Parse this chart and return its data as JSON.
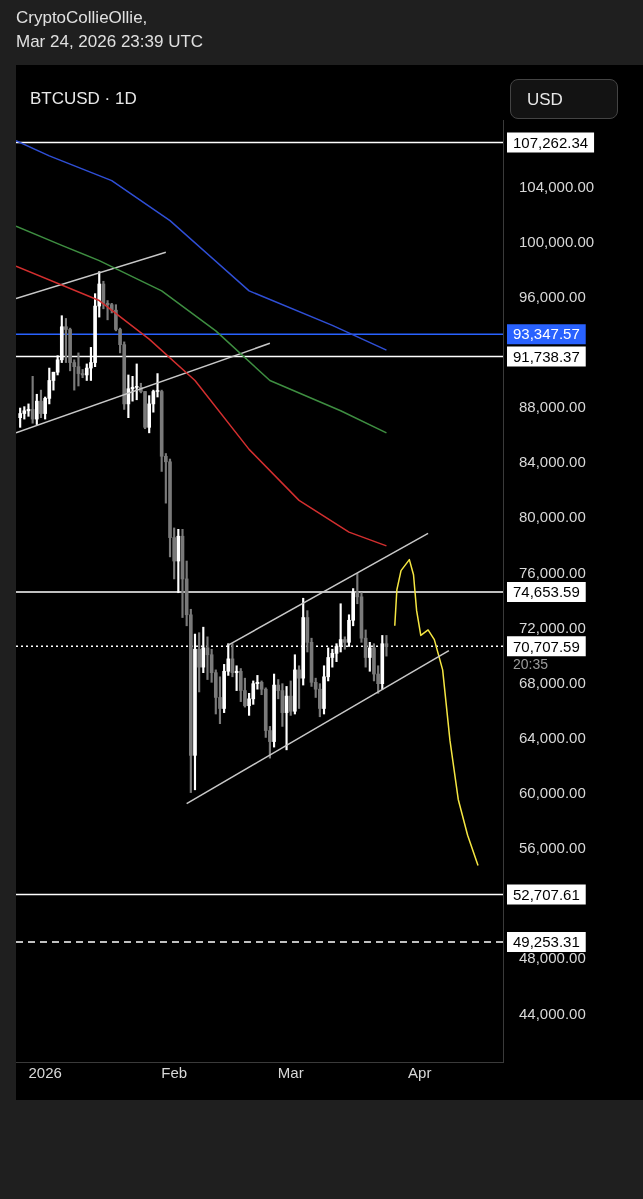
{
  "chart_data": {
    "type": "candlestick",
    "title": "CryptoCollieOllie,",
    "subtitle": "Mar 24, 2026 23:39 UTC",
    "ylabel": "USD",
    "annotations": [
      "BTCUSD · 1D",
      "20:35"
    ],
    "xlim": [
      "2025-12-25",
      "2026-04-21"
    ],
    "xticks": [
      {
        "value": "2026-01-01",
        "label": "2026"
      },
      {
        "value": "2026-02-01",
        "label": "Feb"
      },
      {
        "value": "2026-03-01",
        "label": "Mar"
      },
      {
        "value": "2026-04-01",
        "label": "Apr"
      }
    ],
    "ylim": [
      40550,
      108900
    ],
    "yticks": [
      {
        "value": 44000,
        "label": "44,000.00"
      },
      {
        "value": 48000,
        "label": "48,000.00"
      },
      {
        "value": 56000,
        "label": "56,000.00"
      },
      {
        "value": 60000,
        "label": "60,000.00"
      },
      {
        "value": 64000,
        "label": "64,000.00"
      },
      {
        "value": 68000,
        "label": "68,000.00"
      },
      {
        "value": 72000,
        "label": "72,000.00"
      },
      {
        "value": 76000,
        "label": "76,000.00"
      },
      {
        "value": 80000,
        "label": "80,000.00"
      },
      {
        "value": 84000,
        "label": "84,000.00"
      },
      {
        "value": 88000,
        "label": "88,000.00"
      },
      {
        "value": 96000,
        "label": "96,000.00"
      },
      {
        "value": 100000,
        "label": "100,000.00"
      },
      {
        "value": 104000,
        "label": "104,000.00"
      }
    ],
    "legend": false,
    "marker": "none",
    "ref_lines": [
      {
        "axis": "y",
        "value": 107262.34,
        "label": "107,262.34",
        "color": "#ffffff",
        "line_style": "solid"
      },
      {
        "axis": "y",
        "value": 93347.57,
        "label": "93,347.57",
        "color": "#2962ff",
        "line_style": "solid"
      },
      {
        "axis": "y",
        "value": 91738.37,
        "label": "91,738.37",
        "color": "#ffffff",
        "line_style": "solid"
      },
      {
        "axis": "y",
        "value": 74653.59,
        "label": "74,653.59",
        "color": "#ffffff",
        "line_style": "solid"
      },
      {
        "axis": "y",
        "value": 70707.59,
        "label": "70,707.59",
        "color": "#ffffff",
        "line_style": "dotted"
      },
      {
        "axis": "y",
        "value": 52707.61,
        "label": "52,707.61",
        "color": "#ffffff",
        "line_style": "solid"
      },
      {
        "axis": "y",
        "value": 49253.31,
        "label": "49,253.31",
        "color": "#ffffff",
        "line_style": "dashed"
      }
    ],
    "series": [
      {
        "type": "line",
        "color": "#2f4fd6",
        "x": [
          "2025-12-25",
          "2026-01-02",
          "2026-01-17",
          "2026-01-31",
          "2026-02-19",
          "2026-03-11",
          "2026-03-24"
        ],
        "values": [
          107400,
          106300,
          104500,
          101600,
          96500,
          94000,
          92200
        ]
      },
      {
        "type": "line",
        "color": "#3e8e41",
        "x": [
          "2025-12-25",
          "2026-01-05",
          "2026-01-14",
          "2026-01-29",
          "2026-02-11",
          "2026-02-24",
          "2026-03-13",
          "2026-03-24"
        ],
        "values": [
          101200,
          99800,
          98700,
          96500,
          93600,
          90000,
          87800,
          86200
        ]
      },
      {
        "type": "line",
        "color": "#d32f2f",
        "x": [
          "2025-12-25",
          "2026-01-14",
          "2026-01-26",
          "2026-02-06",
          "2026-02-19",
          "2026-03-03",
          "2026-03-15",
          "2026-03-24"
        ],
        "values": [
          98300,
          95800,
          93000,
          90000,
          85000,
          81300,
          79000,
          78000
        ]
      },
      {
        "type": "line",
        "color": "#c8c8c8",
        "x": [
          "2025-12-25",
          "2026-01-30"
        ],
        "values": [
          95950,
          99300
        ]
      },
      {
        "type": "line",
        "color": "#c8c8c8",
        "x": [
          "2025-12-25",
          "2026-02-24"
        ],
        "values": [
          86200,
          92700
        ]
      },
      {
        "type": "line",
        "color": "#c8c8c8",
        "x": [
          "2026-02-14",
          "2026-04-03"
        ],
        "values": [
          70800,
          78900
        ]
      },
      {
        "type": "line",
        "color": "#c8c8c8",
        "x": [
          "2026-02-04",
          "2026-04-08"
        ],
        "values": [
          59300,
          70400
        ]
      },
      {
        "type": "line",
        "color": "#f5e642",
        "x": [
          "2026-03-26T00:00",
          "2026-03-26T12:00",
          "2026-03-27T12:00",
          "2026-03-29T12:00",
          "2026-03-30T12:00",
          "2026-03-31T06:00",
          "2026-04-01T06:00",
          "2026-04-03T00:00",
          "2026-04-04T12:00",
          "2026-04-06T12:00",
          "2026-04-08T06:00",
          "2026-04-10T06:00",
          "2026-04-12T12:00",
          "2026-04-15T00:00"
        ],
        "values": [
          72200,
          74800,
          76200,
          77000,
          75900,
          73300,
          71500,
          71900,
          71200,
          69000,
          63900,
          59600,
          57000,
          54800
        ]
      },
      {
        "colors": [
          "#ffffff",
          "#ffffff",
          "#ffffff",
          "#7a7a7a",
          "#ffffff",
          "#7a7a7a",
          "#ffffff",
          "#ffffff",
          "#ffffff",
          "#ffffff",
          "#ffffff",
          "#7a7a7a",
          "#7a7a7a",
          "#7a7a7a",
          "#7a7a7a",
          "#7a7a7a",
          "#ffffff",
          "#ffffff",
          "#ffffff",
          "#ffffff",
          "#7a7a7a",
          "#7a7a7a",
          "#7a7a7a",
          "#7a7a7a",
          "#7a7a7a",
          "#7a7a7a",
          "#ffffff",
          "#ffffff",
          "#ffffff",
          "#7a7a7a",
          "#7a7a7a",
          "#ffffff",
          "#ffffff",
          "#ffffff",
          "#7a7a7a",
          "#7a7a7a",
          "#7a7a7a",
          "#7a7a7a",
          "#ffffff",
          "#7a7a7a",
          "#7a7a7a",
          "#7a7a7a",
          "#ffffff",
          "#7a7a7a",
          "#ffffff",
          "#7a7a7a",
          "#7a7a7a",
          "#7a7a7a",
          "#7a7a7a",
          "#ffffff",
          "#ffffff",
          "#7a7a7a",
          "#ffffff",
          "#7a7a7a",
          "#7a7a7a",
          "#ffffff",
          "#ffffff",
          "#ffffff",
          "#7a7a7a",
          "#7a7a7a",
          "#7a7a7a",
          "#ffffff",
          "#7a7a7a",
          "#7a7a7a",
          "#ffffff",
          "#7a7a7a",
          "#ffffff",
          "#7a7a7a",
          "#ffffff",
          "#7a7a7a",
          "#7a7a7a",
          "#7a7a7a",
          "#7a7a7a",
          "#ffffff",
          "#ffffff",
          "#ffffff",
          "#ffffff",
          "#ffffff",
          "#7a7a7a",
          "#ffffff",
          "#ffffff",
          "#7a7a7a",
          "#7a7a7a",
          "#7a7a7a",
          "#ffffff",
          "#7a7a7a",
          "#7a7a7a",
          "#ffffff",
          "#7a7a7a"
        ],
        "x": [
          "2025-12-26",
          "2025-12-27",
          "2025-12-28",
          "2025-12-29",
          "2025-12-30",
          "2025-12-31",
          "2026-01-01",
          "2026-01-02",
          "2026-01-03",
          "2026-01-04",
          "2026-01-05",
          "2026-01-06",
          "2026-01-07",
          "2026-01-08",
          "2026-01-09",
          "2026-01-10",
          "2026-01-11",
          "2026-01-12",
          "2026-01-13",
          "2026-01-14",
          "2026-01-15",
          "2026-01-16",
          "2026-01-17",
          "2026-01-18",
          "2026-01-19",
          "2026-01-20",
          "2026-01-21",
          "2026-01-22",
          "2026-01-23",
          "2026-01-24",
          "2026-01-25",
          "2026-01-26",
          "2026-01-27",
          "2026-01-28",
          "2026-01-29",
          "2026-01-30",
          "2026-01-31",
          "2026-02-01",
          "2026-02-02",
          "2026-02-03",
          "2026-02-04",
          "2026-02-05",
          "2026-02-06",
          "2026-02-07",
          "2026-02-08",
          "2026-02-09",
          "2026-02-10",
          "2026-02-11",
          "2026-02-12",
          "2026-02-13",
          "2026-02-14",
          "2026-02-15",
          "2026-02-16",
          "2026-02-17",
          "2026-02-18",
          "2026-02-19",
          "2026-02-20",
          "2026-02-21",
          "2026-02-22",
          "2026-02-23",
          "2026-02-24",
          "2026-02-25",
          "2026-02-26",
          "2026-02-27",
          "2026-02-28",
          "2026-03-01",
          "2026-03-02",
          "2026-03-03",
          "2026-03-04",
          "2026-03-05",
          "2026-03-06",
          "2026-03-07",
          "2026-03-08",
          "2026-03-09",
          "2026-03-10",
          "2026-03-11",
          "2026-03-12",
          "2026-03-13",
          "2026-03-14",
          "2026-03-15",
          "2026-03-16",
          "2026-03-17",
          "2026-03-18",
          "2026-03-19",
          "2026-03-20",
          "2026-03-21",
          "2026-03-22",
          "2026-03-23",
          "2026-03-24"
        ],
        "ohlc": [
          [
            87300,
            88000,
            86600,
            87600
          ],
          [
            87600,
            88100,
            87200,
            87800
          ],
          [
            87800,
            88300,
            87400,
            87900
          ],
          [
            87900,
            90300,
            86900,
            87200
          ],
          [
            87200,
            89000,
            86800,
            88500
          ],
          [
            88500,
            89300,
            87300,
            87600
          ],
          [
            87600,
            88800,
            87200,
            88700
          ],
          [
            88700,
            90900,
            88300,
            90000
          ],
          [
            90000,
            90600,
            89300,
            90600
          ],
          [
            90600,
            91800,
            90400,
            91500
          ],
          [
            91500,
            94700,
            91300,
            93900
          ],
          [
            93900,
            94500,
            91300,
            93700
          ],
          [
            93700,
            93800,
            90700,
            91300
          ],
          [
            91300,
            91500,
            89300,
            91000
          ],
          [
            91000,
            92000,
            89600,
            90500
          ],
          [
            90500,
            90800,
            90200,
            90400
          ],
          [
            90400,
            91200,
            90000,
            90900
          ],
          [
            90900,
            92400,
            90000,
            91300
          ],
          [
            91300,
            96300,
            91000,
            95400
          ],
          [
            95400,
            97900,
            94600,
            97000
          ],
          [
            97000,
            97200,
            95200,
            95600
          ],
          [
            95600,
            95800,
            94400,
            95500
          ],
          [
            95500,
            95600,
            94900,
            95100
          ],
          [
            95100,
            95500,
            93600,
            93700
          ],
          [
            93700,
            93800,
            92000,
            92600
          ],
          [
            92600,
            92800,
            87900,
            88300
          ],
          [
            88300,
            90400,
            87300,
            89400
          ],
          [
            89400,
            90300,
            88500,
            89500
          ],
          [
            89500,
            91200,
            88600,
            89500
          ],
          [
            89500,
            89800,
            89100,
            89200
          ],
          [
            89200,
            89200,
            86500,
            86600
          ],
          [
            86600,
            88900,
            86200,
            88300
          ],
          [
            88300,
            89300,
            87700,
            89200
          ],
          [
            89200,
            90500,
            88800,
            89200
          ],
          [
            89200,
            89300,
            83400,
            84500
          ],
          [
            84500,
            84700,
            81100,
            84100
          ],
          [
            84100,
            84300,
            77200,
            78600
          ],
          [
            78600,
            79300,
            75600,
            76900
          ],
          [
            76900,
            79200,
            74600,
            78700
          ],
          [
            78700,
            79200,
            72800,
            75600
          ],
          [
            75600,
            76900,
            72200,
            73000
          ],
          [
            73000,
            73400,
            60100,
            62800
          ],
          [
            62800,
            71600,
            60300,
            70500
          ],
          [
            70500,
            71700,
            67400,
            69200
          ],
          [
            69200,
            72100,
            68800,
            70600
          ],
          [
            70600,
            71400,
            68300,
            70100
          ],
          [
            70100,
            70500,
            68100,
            68800
          ],
          [
            68800,
            69000,
            65800,
            67000
          ],
          [
            67000,
            68500,
            65100,
            66200
          ],
          [
            66200,
            69400,
            65900,
            68900
          ],
          [
            68900,
            70900,
            68600,
            69800
          ],
          [
            69800,
            70900,
            68500,
            68800
          ],
          [
            68800,
            69300,
            67500,
            68900
          ],
          [
            68900,
            69100,
            66700,
            67500
          ],
          [
            67500,
            68400,
            66300,
            66400
          ],
          [
            66400,
            67300,
            65700,
            66900
          ],
          [
            66900,
            68200,
            66500,
            68000
          ],
          [
            68000,
            68600,
            67600,
            68100
          ],
          [
            68100,
            68200,
            67200,
            67600
          ],
          [
            67600,
            67700,
            64100,
            64600
          ],
          [
            64600,
            64900,
            62600,
            63800
          ],
          [
            63800,
            68700,
            63400,
            67900
          ],
          [
            67900,
            68300,
            66900,
            67500
          ],
          [
            67500,
            68000,
            64900,
            65900
          ],
          [
            65900,
            67800,
            63200,
            67100
          ],
          [
            67100,
            68200,
            65700,
            66000
          ],
          [
            66000,
            70100,
            65800,
            69000
          ],
          [
            69000,
            69300,
            66200,
            68400
          ],
          [
            68400,
            74200,
            67900,
            72800
          ],
          [
            72800,
            73300,
            70300,
            71000
          ],
          [
            71000,
            71300,
            67800,
            68100
          ],
          [
            68100,
            68400,
            67000,
            67600
          ],
          [
            67600,
            68000,
            65600,
            66200
          ],
          [
            66200,
            69300,
            65800,
            68500
          ],
          [
            68500,
            70600,
            68200,
            69900
          ],
          [
            69900,
            70500,
            69200,
            70200
          ],
          [
            70200,
            70900,
            69600,
            70700
          ],
          [
            70700,
            73800,
            70300,
            71200
          ],
          [
            71200,
            71400,
            70500,
            71000
          ],
          [
            71000,
            73000,
            70700,
            72600
          ],
          [
            72600,
            74900,
            72200,
            74600
          ],
          [
            74600,
            76000,
            73800,
            74300
          ],
          [
            74300,
            74600,
            71000,
            71300
          ],
          [
            71300,
            71900,
            69200,
            69900
          ],
          [
            69900,
            71000,
            68900,
            70600
          ],
          [
            70600,
            70900,
            68200,
            68700
          ],
          [
            68700,
            69300,
            67300,
            68000
          ],
          [
            68000,
            71500,
            67600,
            70900
          ],
          [
            70900,
            71500,
            70000,
            70700
          ]
        ]
      }
    ]
  }
}
